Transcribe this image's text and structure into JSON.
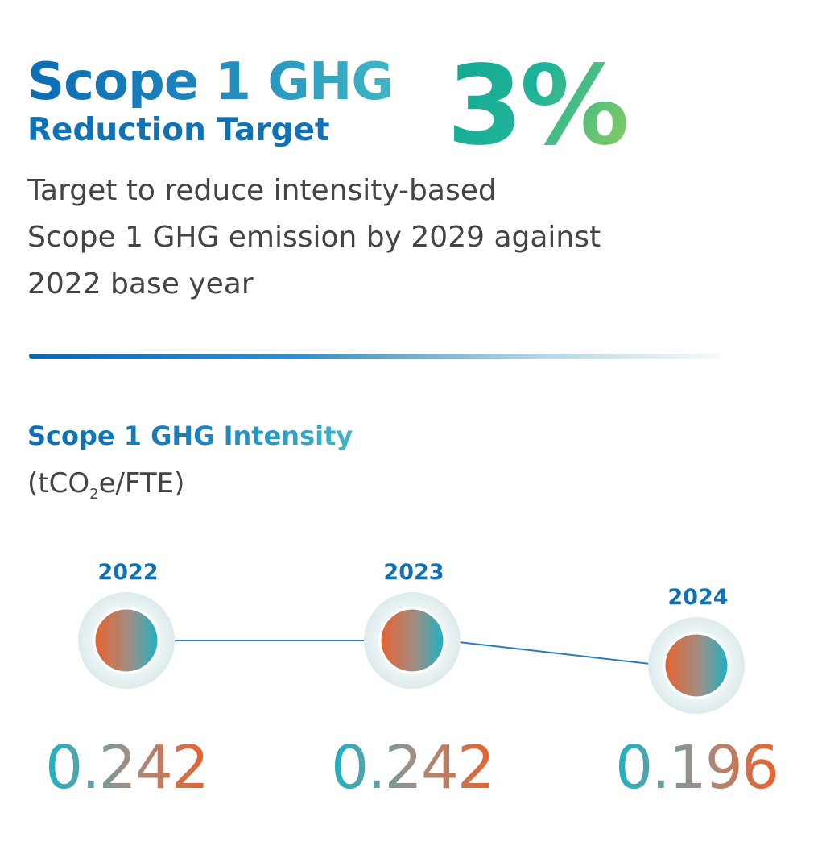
{
  "headline": {
    "line1": "Scope 1 GHG",
    "line2": "Reduction Target",
    "percent": "3%"
  },
  "description": {
    "line1": "Target to reduce intensity-based",
    "line2": "Scope 1 GHG emission by 2029 against",
    "line3": "2022 base year"
  },
  "colors": {
    "primary_blue": "#0f72b6",
    "teal": "#19b3c6",
    "orange": "#e8622e",
    "green_accent": "#8ccc5e"
  },
  "chart_data": {
    "type": "line",
    "title": "Scope 1 GHG Intensity",
    "unit": {
      "prefix": "(tCO",
      "sub": "2",
      "suffix": "e/FTE)"
    },
    "x": [
      "2022",
      "2023",
      "2024"
    ],
    "values": [
      0.242,
      0.242,
      0.196
    ],
    "value_labels": [
      "0.242",
      "0.242",
      "0.196"
    ],
    "grid": false,
    "legend": "none"
  }
}
